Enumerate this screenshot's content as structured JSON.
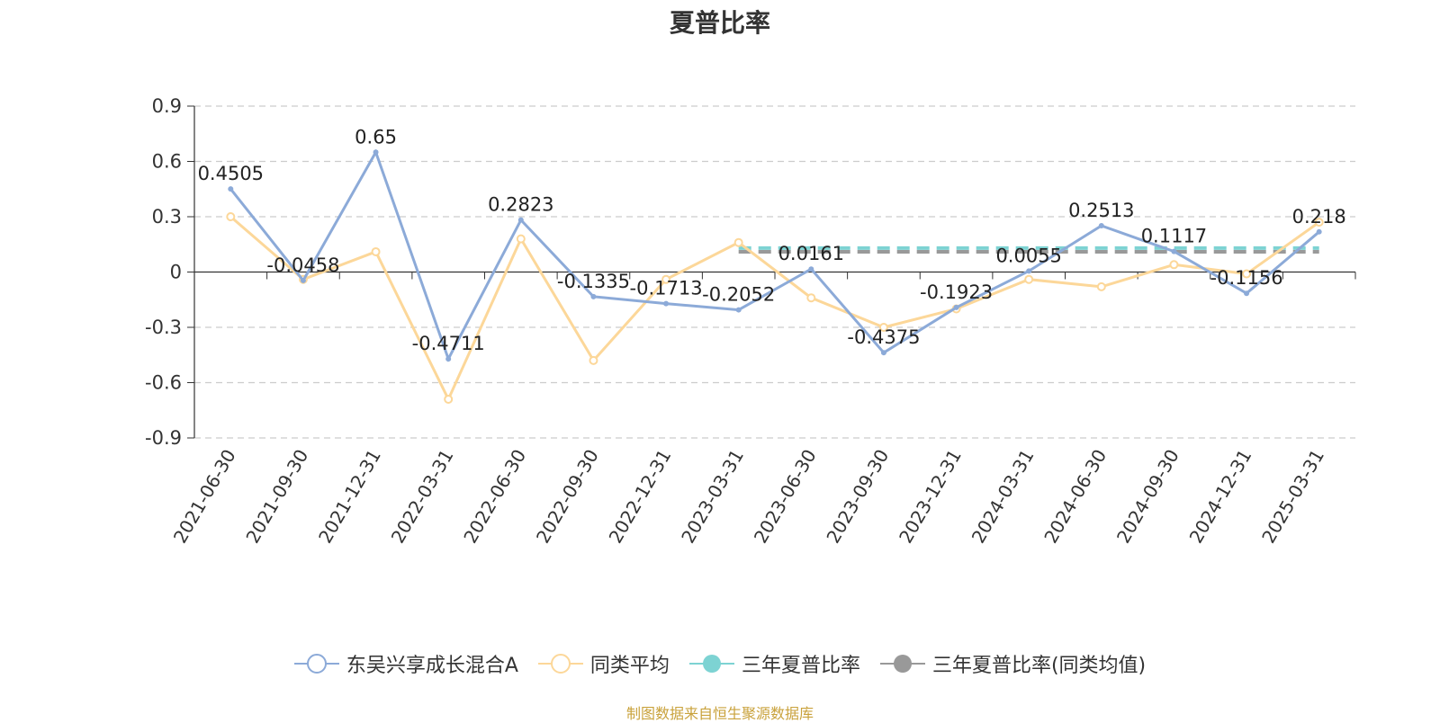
{
  "chart_data": {
    "type": "line",
    "title": "夏普比率",
    "categories": [
      "2021-06-30",
      "2021-09-30",
      "2021-12-31",
      "2022-03-31",
      "2022-06-30",
      "2022-09-30",
      "2022-12-31",
      "2023-03-31",
      "2023-06-30",
      "2023-09-30",
      "2023-12-31",
      "2024-03-31",
      "2024-06-30",
      "2024-09-30",
      "2024-12-31",
      "2025-03-31"
    ],
    "ylim": [
      -0.9,
      0.9
    ],
    "yticks": [
      "0.9",
      "0.6",
      "0.3",
      "0",
      "-0.3",
      "-0.6",
      "-0.9"
    ],
    "grid": true,
    "legend_position": "bottom",
    "series": [
      {
        "name": "东吴兴享成长混合A",
        "color": "#8caad8",
        "values": [
          0.4505,
          -0.0458,
          0.65,
          -0.4711,
          0.2823,
          -0.1335,
          -0.1713,
          -0.2052,
          0.0161,
          -0.4375,
          -0.1923,
          0.0055,
          0.2513,
          0.1117,
          -0.1156,
          0.218
        ],
        "labels": [
          "0.4505",
          "-0.0458",
          "0.65",
          "-0.4711",
          "0.2823",
          "-0.1335",
          "-0.1713",
          "-0.2052",
          "0.0161",
          "-0.4375",
          "-0.1923",
          "0.0055",
          "0.2513",
          "0.1117",
          "-0.1156",
          "0.218"
        ]
      },
      {
        "name": "同类平均",
        "color": "#fcd799",
        "values": [
          0.3,
          -0.04,
          0.11,
          -0.69,
          0.18,
          -0.48,
          -0.04,
          0.16,
          -0.14,
          -0.3,
          -0.2,
          -0.04,
          -0.08,
          0.04,
          -0.01,
          0.27
        ]
      },
      {
        "name": "三年夏普比率",
        "color": "#7dd3d3",
        "dashed": true,
        "from": "2023-03-31",
        "to": "2025-03-31",
        "value": 0.13
      },
      {
        "name": "三年夏普比率(同类均值)",
        "color": "#999999",
        "dashed": true,
        "from": "2023-03-31",
        "to": "2025-03-31",
        "value": 0.11
      }
    ]
  },
  "source_text": "制图数据来自恒生聚源数据库"
}
